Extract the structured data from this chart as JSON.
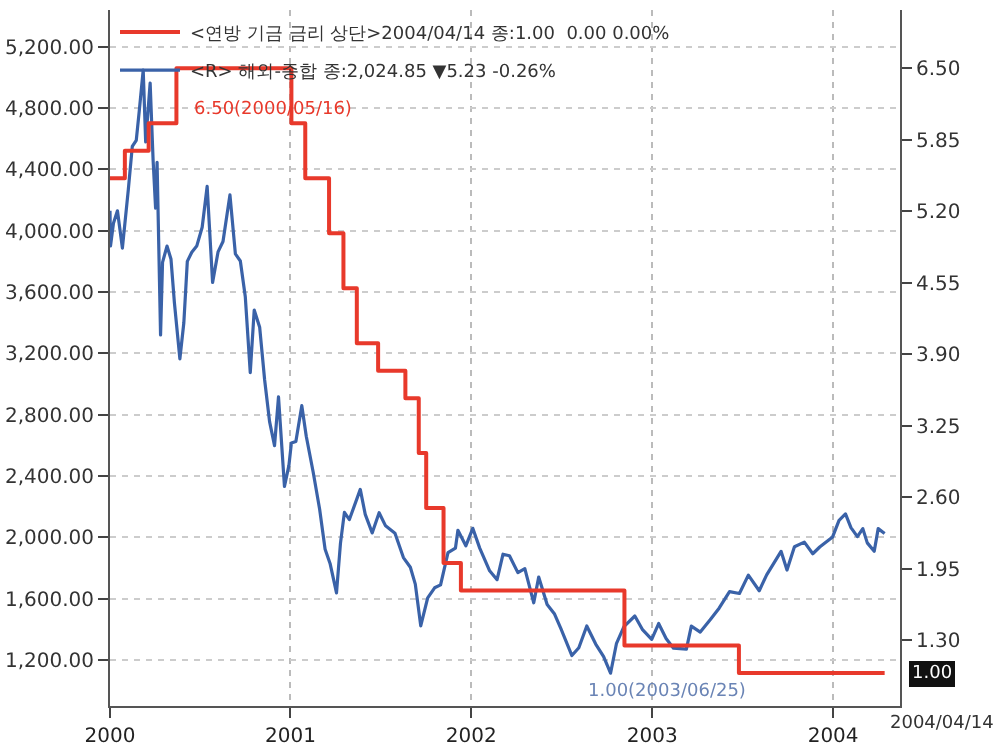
{
  "chart_data": {
    "type": "line",
    "x": [
      "2000-01-03",
      "2000-01-04",
      "2000-01-10",
      "2000-01-18",
      "2000-01-28",
      "2000-02-09",
      "2000-02-17",
      "2000-02-25",
      "2000-03-02",
      "2000-03-10",
      "2000-03-15",
      "2000-03-24",
      "2000-03-30",
      "2000-04-04",
      "2000-04-07",
      "2000-04-14",
      "2000-04-18",
      "2000-04-27",
      "2000-05-05",
      "2000-05-12",
      "2000-05-23",
      "2000-05-31",
      "2000-06-07",
      "2000-06-16",
      "2000-06-26",
      "2000-07-07",
      "2000-07-17",
      "2000-07-28",
      "2000-08-08",
      "2000-08-18",
      "2000-09-01",
      "2000-09-12",
      "2000-09-22",
      "2000-10-02",
      "2000-10-12",
      "2000-10-20",
      "2000-10-31",
      "2000-11-10",
      "2000-11-20",
      "2000-11-30",
      "2000-12-08",
      "2000-12-20",
      "2000-12-29",
      "2001-01-03",
      "2001-01-12",
      "2001-01-24",
      "2001-02-02",
      "2001-02-16",
      "2001-03-01",
      "2001-03-12",
      "2001-03-22",
      "2001-04-04",
      "2001-04-12",
      "2001-04-20",
      "2001-04-30",
      "2001-05-22",
      "2001-06-01",
      "2001-06-15",
      "2001-06-29",
      "2001-07-12",
      "2001-07-31",
      "2001-08-17",
      "2001-08-31",
      "2001-09-10",
      "2001-09-21",
      "2001-10-05",
      "2001-10-19",
      "2001-10-31",
      "2001-11-15",
      "2001-11-30",
      "2001-12-05",
      "2001-12-21",
      "2002-01-04",
      "2002-01-18",
      "2002-02-07",
      "2002-02-22",
      "2002-03-06",
      "2002-03-19",
      "2002-04-05",
      "2002-04-19",
      "2002-05-07",
      "2002-05-17",
      "2002-06-03",
      "2002-06-18",
      "2002-07-01",
      "2002-07-23",
      "2002-08-06",
      "2002-08-22",
      "2002-09-09",
      "2002-09-25",
      "2002-10-09",
      "2002-10-21",
      "2002-11-05",
      "2002-11-27",
      "2002-12-12",
      "2002-12-31",
      "2003-01-14",
      "2003-01-29",
      "2003-02-13",
      "2003-03-11",
      "2003-03-21",
      "2003-04-08",
      "2003-04-28",
      "2003-05-16",
      "2003-06-06",
      "2003-06-26",
      "2003-07-14",
      "2003-08-05",
      "2003-08-20",
      "2003-09-18",
      "2003-09-30",
      "2003-10-15",
      "2003-11-04",
      "2003-11-21",
      "2003-12-05",
      "2003-12-31",
      "2004-01-13",
      "2004-01-26",
      "2004-02-06",
      "2004-02-19",
      "2004-03-01",
      "2004-03-10",
      "2004-03-24",
      "2004-04-01",
      "2004-04-14"
    ],
    "series": [
      {
        "name": "<R> 해외-종합 종:2,024.85 ▼5.23 -0.26%",
        "color": "#3a62a8",
        "values": [
          4131,
          3901,
          4049,
          4130,
          3887,
          4270,
          4550,
          4590,
          4780,
          5048,
          4580,
          4963,
          4458,
          4148,
          4446,
          3321,
          3794,
          3900,
          3816,
          3529,
          3164,
          3400,
          3800,
          3860,
          3900,
          4023,
          4289,
          3663,
          3862,
          3930,
          4234,
          3849,
          3803,
          3569,
          3074,
          3483,
          3370,
          3028,
          2755,
          2598,
          2917,
          2332,
          2470,
          2616,
          2626,
          2859,
          2660,
          2425,
          2183,
          1923,
          1830,
          1638,
          1961,
          2163,
          2116,
          2313,
          2150,
          2029,
          2161,
          2075,
          2027,
          1868,
          1805,
          1695,
          1423,
          1605,
          1671,
          1690,
          1900,
          1930,
          2046,
          1945,
          2059,
          1930,
          1782,
          1724,
          1890,
          1880,
          1770,
          1796,
          1573,
          1741,
          1562,
          1500,
          1403,
          1229,
          1280,
          1422,
          1304,
          1222,
          1114,
          1309,
          1418,
          1487,
          1400,
          1335,
          1438,
          1340,
          1277,
          1271,
          1421,
          1382,
          1462,
          1538,
          1646,
          1634,
          1754,
          1652,
          1755,
          1909,
          1787,
          1939,
          1969,
          1893,
          1937,
          2003,
          2111,
          2153,
          2064,
          2005,
          2057,
          1964,
          1909,
          2057,
          2024.85
        ]
      },
      {
        "name": "<연방 기금 금리 상단>2004/04/14 종:1.00  0.00 0.00%",
        "color": "#e8392b",
        "type": "step",
        "axis": "y2",
        "x": [
          "2000-01-03",
          "2000-02-02",
          "2000-03-21",
          "2000-05-16",
          "2001-01-03",
          "2001-01-31",
          "2001-03-20",
          "2001-04-18",
          "2001-05-15",
          "2001-06-27",
          "2001-08-21",
          "2001-09-17",
          "2001-10-02",
          "2001-11-06",
          "2001-12-11",
          "2002-11-06",
          "2003-06-25",
          "2004-04-14"
        ],
        "values": [
          5.5,
          5.75,
          6.0,
          6.5,
          6.0,
          5.5,
          5.0,
          4.5,
          4.0,
          3.75,
          3.5,
          3.0,
          2.5,
          2.0,
          1.75,
          1.25,
          1.0,
          1.0
        ]
      }
    ],
    "xlim": [
      "2000-01-03",
      "2004-05-15"
    ],
    "xticks": [
      {
        "value": "2000-01-03",
        "label": "2000"
      },
      {
        "value": "2001-01-01",
        "label": "2001"
      },
      {
        "value": "2002-01-01",
        "label": "2002"
      },
      {
        "value": "2003-01-01",
        "label": "2003"
      },
      {
        "value": "2004-01-01",
        "label": "2004"
      }
    ],
    "ylim": [
      900,
      5440
    ],
    "yticks": [
      {
        "value": 1200,
        "label": "1,200.00"
      },
      {
        "value": 1600,
        "label": "1,600.00"
      },
      {
        "value": 2000,
        "label": "2,000.00"
      },
      {
        "value": 2400,
        "label": "2,400.00"
      },
      {
        "value": 2800,
        "label": "2,800.00"
      },
      {
        "value": 3200,
        "label": "3,200.00"
      },
      {
        "value": 3600,
        "label": "3,600.00"
      },
      {
        "value": 4000,
        "label": "4,000.00"
      },
      {
        "value": 4400,
        "label": "4,400.00"
      },
      {
        "value": 4800,
        "label": "4,800.00"
      },
      {
        "value": 5200,
        "label": "5,200.00"
      }
    ],
    "y2lim": [
      0.7,
      7.03
    ],
    "y2ticks": [
      {
        "value": 1.3,
        "label": "1.30"
      },
      {
        "value": 1.95,
        "label": "1.95"
      },
      {
        "value": 2.6,
        "label": "2.60"
      },
      {
        "value": 3.25,
        "label": "3.25"
      },
      {
        "value": 3.9,
        "label": "3.90"
      },
      {
        "value": 4.55,
        "label": "4.55"
      },
      {
        "value": 5.2,
        "label": "5.20"
      },
      {
        "value": 5.85,
        "label": "5.85"
      },
      {
        "value": 6.5,
        "label": "6.50"
      }
    ],
    "annotations": [
      "6.50(2000/05/16)",
      "1.00(2003/06/25)",
      "1.00",
      "2004/04/14"
    ],
    "grid": true,
    "legend": "top left",
    "line_style": "solid",
    "marker": "none"
  }
}
